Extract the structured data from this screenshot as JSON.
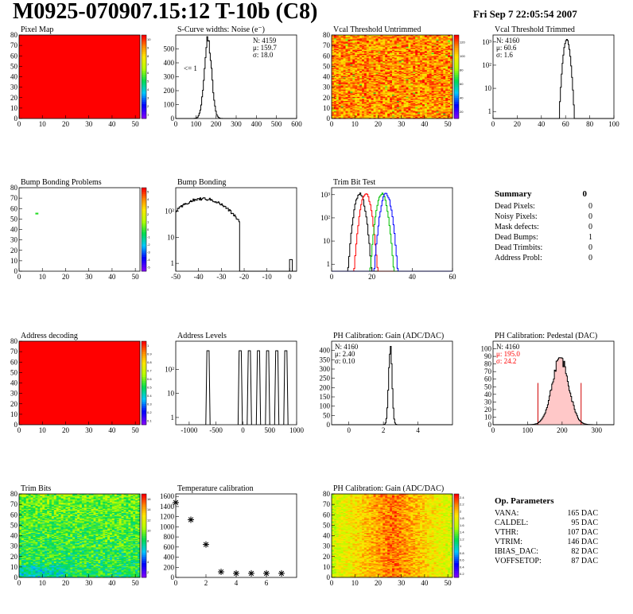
{
  "header": {
    "title": "M0925-070907.15:12 T-10b (C8)",
    "date": "Fri Sep  7 22:05:54 2007"
  },
  "chart_data": [
    {
      "id": "pixel_map",
      "type": "heatmap",
      "title": "Pixel Map",
      "xlim": [
        0,
        52
      ],
      "ylim": [
        0,
        80
      ],
      "x_ticks": [
        0,
        10,
        20,
        30,
        40,
        50
      ],
      "y_ticks": [
        0,
        10,
        20,
        30,
        40,
        50,
        60,
        70,
        80
      ],
      "fill": "uniform_red",
      "z_max": 10,
      "palette_ticks": [
        1,
        2,
        3,
        4,
        5,
        6,
        7,
        8,
        9,
        10
      ]
    },
    {
      "id": "noise",
      "type": "histogram",
      "title": "S-Curve widths: Noise (e⁻)",
      "xlim": [
        0,
        600
      ],
      "ylim": [
        0,
        600
      ],
      "log": false,
      "x_ticks": [
        0,
        100,
        200,
        300,
        400,
        500,
        600
      ],
      "y_ticks": [
        0,
        100,
        200,
        300,
        400,
        500
      ],
      "stats": [
        "N: 4159",
        "μ: 159.7",
        "σ: 18.0"
      ],
      "annotation": "<= 1",
      "peak": {
        "center": 160,
        "sigma": 18,
        "height": 560
      }
    },
    {
      "id": "vcal_untrimmed",
      "type": "heatmap",
      "title": "Vcal Threshold Untrimmed",
      "xlim": [
        0,
        52
      ],
      "ylim": [
        0,
        80
      ],
      "x_ticks": [
        0,
        10,
        20,
        30,
        40,
        50
      ],
      "y_ticks": [
        0,
        10,
        20,
        30,
        40,
        50,
        60,
        70,
        80
      ],
      "fill": "noisy_warm",
      "z_max": 120,
      "palette_ticks": [
        20,
        40,
        60,
        80,
        100,
        120
      ]
    },
    {
      "id": "vcal_trimmed",
      "type": "histogram",
      "title": "Vcal Threshold Trimmed",
      "xlim": [
        0,
        100
      ],
      "ylim": [
        0.5,
        2000
      ],
      "log": true,
      "x_ticks": [
        0,
        20,
        40,
        60,
        80,
        100
      ],
      "y_ticks": [
        "1",
        "10",
        "10²",
        "10³"
      ],
      "stats": [
        "N: 4160",
        "μ: 60.6",
        "σ: 1.6"
      ],
      "peak": {
        "center": 61,
        "sigma": 1.6,
        "height": 1300
      }
    },
    {
      "id": "bump_problems",
      "type": "heatmap",
      "title": "Bump Bonding Problems",
      "xlim": [
        0,
        52
      ],
      "ylim": [
        0,
        80
      ],
      "x_ticks": [
        0,
        10,
        20,
        30,
        40,
        50
      ],
      "y_ticks": [
        0,
        10,
        20,
        30,
        40,
        50,
        60,
        70,
        80
      ],
      "fill": "empty",
      "points": [
        {
          "x": 7,
          "y": 55
        }
      ],
      "z_max": 5,
      "palette_ticks": [
        -5,
        -4,
        -3,
        -2,
        -1,
        0,
        1,
        2,
        3,
        4,
        5
      ]
    },
    {
      "id": "bump_bonding",
      "type": "histogram",
      "title": "Bump Bonding",
      "xlim": [
        -50,
        3
      ],
      "ylim": [
        0.5,
        800
      ],
      "log": true,
      "x_ticks": [
        -50,
        -40,
        -30,
        -20,
        -10,
        0
      ],
      "y_ticks": [
        "1",
        "10",
        "10²"
      ],
      "peak": {
        "center": -38,
        "sigma": 8,
        "height": 300
      },
      "outliers": [
        {
          "x": 0.5,
          "y": 1
        }
      ]
    },
    {
      "id": "trim_bit_test",
      "type": "histogram",
      "title": "Trim Bit Test",
      "xlim": [
        0,
        60
      ],
      "ylim": [
        0.5,
        2000
      ],
      "log": true,
      "x_ticks": [
        0,
        20,
        40,
        60
      ],
      "y_ticks": [
        "1",
        "10",
        "10²",
        "10³"
      ],
      "series": [
        {
          "center": 14,
          "sigma": 1.5,
          "height": 1100,
          "color": "#000000"
        },
        {
          "center": 17,
          "sigma": 1.5,
          "height": 1100,
          "color": "#ff0000"
        },
        {
          "center": 25,
          "sigma": 1.5,
          "height": 1100,
          "color": "#00c000"
        },
        {
          "center": 27,
          "sigma": 1.5,
          "height": 1100,
          "color": "#0000ff"
        }
      ]
    },
    {
      "id": "address_decoding",
      "type": "heatmap",
      "title": "Address decoding",
      "xlim": [
        0,
        52
      ],
      "ylim": [
        0,
        80
      ],
      "x_ticks": [
        0,
        10,
        20,
        30,
        40,
        50
      ],
      "y_ticks": [
        0,
        10,
        20,
        30,
        40,
        50,
        60,
        70,
        80
      ],
      "fill": "uniform_red",
      "z_max": 1,
      "palette_ticks": [
        0.1,
        0.2,
        0.3,
        0.4,
        0.5,
        0.6,
        0.7,
        0.8,
        0.9,
        1
      ]
    },
    {
      "id": "address_levels",
      "type": "histogram",
      "title": "Address Levels",
      "xlim": [
        -1250,
        1000
      ],
      "ylim": [
        0.5,
        1500
      ],
      "log": true,
      "x_ticks": [
        -1000,
        -500,
        0,
        500,
        1000
      ],
      "y_ticks": [
        "1",
        "10",
        "10²"
      ],
      "spikes": [
        -650,
        -50,
        120,
        290,
        460,
        630,
        800
      ],
      "spike_height": 600
    },
    {
      "id": "ph_gain",
      "type": "histogram",
      "title": "PH Calibration: Gain (ADC/DAC)",
      "xlim": [
        -1,
        6
      ],
      "ylim": [
        0,
        450
      ],
      "log": false,
      "x_ticks": [
        0,
        2,
        4
      ],
      "y_ticks": [
        0,
        50,
        100,
        150,
        200,
        250,
        300,
        350,
        400
      ],
      "stats": [
        "N: 4160",
        "μ: 2.40",
        "σ: 0.10"
      ],
      "peak": {
        "center": 2.4,
        "sigma": 0.1,
        "height": 410
      }
    },
    {
      "id": "ph_pedestal",
      "type": "histogram",
      "title": "PH Calibration: Pedestal (DAC)",
      "xlim": [
        0,
        350
      ],
      "ylim": [
        0,
        110
      ],
      "log": false,
      "x_ticks": [
        0,
        100,
        200,
        300
      ],
      "y_ticks": [
        0,
        10,
        20,
        30,
        40,
        50,
        60,
        70,
        80,
        90,
        100
      ],
      "stats": [
        "N: 4160",
        "μ: 195.0",
        "σ: 24.2"
      ],
      "stats_colors": [
        "#000000",
        "#ff0000",
        "#ff0000"
      ],
      "peak": {
        "center": 195,
        "sigma": 24,
        "height": 88
      },
      "fit_window": [
        130,
        255
      ]
    },
    {
      "id": "trim_bits",
      "type": "heatmap",
      "title": "Trim Bits",
      "xlim": [
        0,
        52
      ],
      "ylim": [
        0,
        80
      ],
      "x_ticks": [
        0,
        10,
        20,
        30,
        40,
        50
      ],
      "y_ticks": [
        0,
        10,
        20,
        30,
        40,
        50,
        60,
        70,
        80
      ],
      "fill": "noisy_green",
      "z_max": 16,
      "palette_ticks": [
        2,
        4,
        6,
        8,
        10,
        12,
        14,
        16
      ]
    },
    {
      "id": "temperature",
      "type": "scatter",
      "title": "Temperature calibration",
      "xlim": [
        0,
        8
      ],
      "ylim": [
        0,
        1650
      ],
      "x_ticks": [
        0,
        2,
        4,
        6
      ],
      "y_ticks": [
        0,
        200,
        400,
        600,
        800,
        1000,
        1200,
        1400,
        1600
      ],
      "x": [
        0,
        1,
        2,
        3,
        4,
        5,
        6,
        7
      ],
      "y": [
        1480,
        1140,
        650,
        110,
        80,
        80,
        80,
        80
      ]
    },
    {
      "id": "ph_gain_map",
      "type": "heatmap",
      "title": "PH Calibration: Gain (ADC/DAC)",
      "xlim": [
        0,
        52
      ],
      "ylim": [
        0,
        80
      ],
      "x_ticks": [
        0,
        10,
        20,
        30,
        40,
        50
      ],
      "y_ticks": [
        0,
        10,
        20,
        30,
        40,
        50,
        60,
        70,
        80
      ],
      "fill": "noisy_center",
      "z_max": 2.4,
      "palette_ticks": [
        0.2,
        0.4,
        0.6,
        0.8,
        1,
        1.2,
        1.4,
        1.6,
        1.8,
        2,
        2.2,
        2.4
      ]
    }
  ],
  "summary": {
    "title": "Summary",
    "value": "0",
    "rows": [
      {
        "label": "Dead Pixels:",
        "value": "0"
      },
      {
        "label": "Noisy Pixels:",
        "value": "0"
      },
      {
        "label": "Mask defects:",
        "value": "0"
      },
      {
        "label": "Dead Bumps:",
        "value": "1"
      },
      {
        "label": "Dead Trimbits:",
        "value": "0"
      },
      {
        "label": "Address Probl:",
        "value": "0"
      }
    ]
  },
  "op_parameters": {
    "title": "Op. Parameters",
    "rows": [
      {
        "label": "VANA:",
        "value": "165 DAC"
      },
      {
        "label": "CALDEL:",
        "value": "95 DAC"
      },
      {
        "label": "VTHR:",
        "value": "107 DAC"
      },
      {
        "label": "VTRIM:",
        "value": "146 DAC"
      },
      {
        "label": "IBIAS_DAC:",
        "value": "82 DAC"
      },
      {
        "label": "VOFFSETOP:",
        "value": "87 DAC"
      }
    ]
  }
}
